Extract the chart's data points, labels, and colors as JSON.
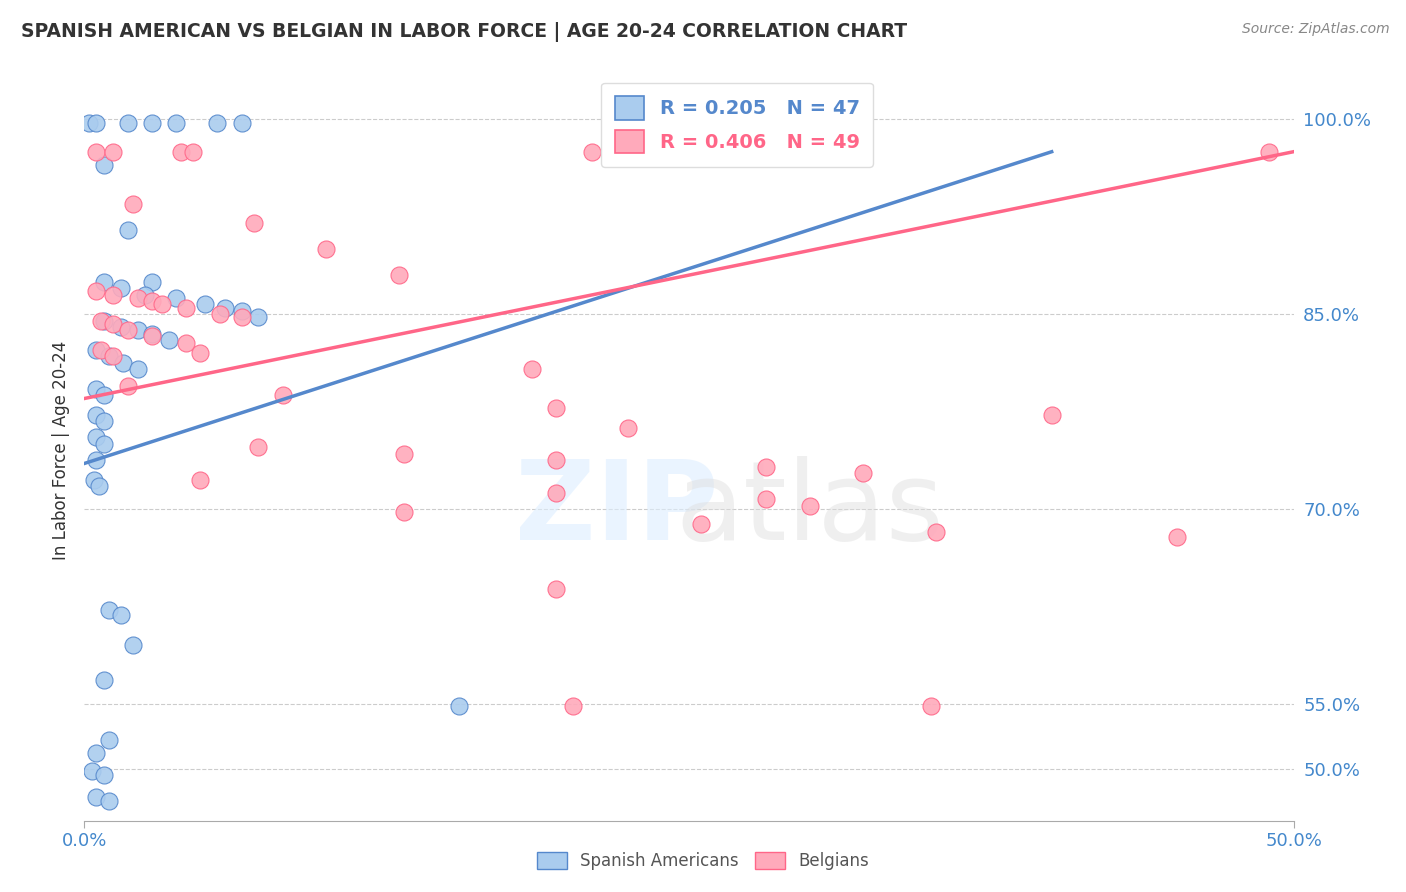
{
  "title": "SPANISH AMERICAN VS BELGIAN IN LABOR FORCE | AGE 20-24 CORRELATION CHART",
  "source_text": "Source: ZipAtlas.com",
  "ylabel": "In Labor Force | Age 20-24",
  "x_min": 0.0,
  "x_max": 0.5,
  "y_min": 0.46,
  "y_max": 1.03,
  "x_tick_labels": [
    "0.0%",
    "50.0%"
  ],
  "x_tick_vals": [
    0.0,
    0.5
  ],
  "y_tick_labels": [
    "50.0%",
    "55.0%",
    "70.0%",
    "85.0%",
    "100.0%"
  ],
  "y_tick_vals": [
    0.5,
    0.55,
    0.7,
    0.85,
    1.0
  ],
  "grid_color": "#cccccc",
  "background_color": "#ffffff",
  "blue_color": "#5588CC",
  "pink_color": "#FF6688",
  "blue_fill": "#aaccee",
  "pink_fill": "#ffaabb",
  "legend_R_blue": "0.205",
  "legend_N_blue": "47",
  "legend_R_pink": "0.406",
  "legend_N_pink": "49",
  "blue_line": [
    [
      0.0,
      0.735
    ],
    [
      0.4,
      0.975
    ]
  ],
  "pink_line": [
    [
      0.0,
      0.785
    ],
    [
      0.5,
      0.975
    ]
  ],
  "blue_points": [
    [
      0.002,
      0.997
    ],
    [
      0.005,
      0.997
    ],
    [
      0.018,
      0.997
    ],
    [
      0.028,
      0.997
    ],
    [
      0.038,
      0.997
    ],
    [
      0.055,
      0.997
    ],
    [
      0.065,
      0.997
    ],
    [
      0.008,
      0.965
    ],
    [
      0.018,
      0.915
    ],
    [
      0.028,
      0.875
    ],
    [
      0.008,
      0.875
    ],
    [
      0.015,
      0.87
    ],
    [
      0.025,
      0.865
    ],
    [
      0.038,
      0.862
    ],
    [
      0.05,
      0.858
    ],
    [
      0.058,
      0.855
    ],
    [
      0.065,
      0.852
    ],
    [
      0.072,
      0.848
    ],
    [
      0.008,
      0.845
    ],
    [
      0.015,
      0.84
    ],
    [
      0.022,
      0.838
    ],
    [
      0.028,
      0.835
    ],
    [
      0.035,
      0.83
    ],
    [
      0.005,
      0.822
    ],
    [
      0.01,
      0.818
    ],
    [
      0.016,
      0.812
    ],
    [
      0.022,
      0.808
    ],
    [
      0.005,
      0.792
    ],
    [
      0.008,
      0.788
    ],
    [
      0.005,
      0.772
    ],
    [
      0.008,
      0.768
    ],
    [
      0.005,
      0.755
    ],
    [
      0.008,
      0.75
    ],
    [
      0.005,
      0.738
    ],
    [
      0.004,
      0.722
    ],
    [
      0.006,
      0.718
    ],
    [
      0.01,
      0.622
    ],
    [
      0.015,
      0.618
    ],
    [
      0.02,
      0.595
    ],
    [
      0.008,
      0.568
    ],
    [
      0.01,
      0.522
    ],
    [
      0.005,
      0.512
    ],
    [
      0.003,
      0.498
    ],
    [
      0.008,
      0.495
    ],
    [
      0.005,
      0.478
    ],
    [
      0.01,
      0.475
    ],
    [
      0.155,
      0.548
    ]
  ],
  "pink_points": [
    [
      0.005,
      0.975
    ],
    [
      0.012,
      0.975
    ],
    [
      0.04,
      0.975
    ],
    [
      0.045,
      0.975
    ],
    [
      0.21,
      0.975
    ],
    [
      0.22,
      0.975
    ],
    [
      0.49,
      0.975
    ],
    [
      0.02,
      0.935
    ],
    [
      0.07,
      0.92
    ],
    [
      0.1,
      0.9
    ],
    [
      0.13,
      0.88
    ],
    [
      0.005,
      0.868
    ],
    [
      0.012,
      0.865
    ],
    [
      0.022,
      0.862
    ],
    [
      0.028,
      0.86
    ],
    [
      0.032,
      0.858
    ],
    [
      0.042,
      0.855
    ],
    [
      0.056,
      0.85
    ],
    [
      0.065,
      0.848
    ],
    [
      0.007,
      0.845
    ],
    [
      0.012,
      0.842
    ],
    [
      0.018,
      0.838
    ],
    [
      0.028,
      0.833
    ],
    [
      0.042,
      0.828
    ],
    [
      0.007,
      0.822
    ],
    [
      0.012,
      0.818
    ],
    [
      0.048,
      0.82
    ],
    [
      0.185,
      0.808
    ],
    [
      0.018,
      0.795
    ],
    [
      0.082,
      0.788
    ],
    [
      0.195,
      0.778
    ],
    [
      0.4,
      0.772
    ],
    [
      0.225,
      0.762
    ],
    [
      0.072,
      0.748
    ],
    [
      0.132,
      0.742
    ],
    [
      0.195,
      0.738
    ],
    [
      0.282,
      0.732
    ],
    [
      0.322,
      0.728
    ],
    [
      0.048,
      0.722
    ],
    [
      0.195,
      0.712
    ],
    [
      0.282,
      0.708
    ],
    [
      0.3,
      0.702
    ],
    [
      0.132,
      0.698
    ],
    [
      0.255,
      0.688
    ],
    [
      0.352,
      0.682
    ],
    [
      0.452,
      0.678
    ],
    [
      0.195,
      0.638
    ],
    [
      0.202,
      0.548
    ],
    [
      0.35,
      0.548
    ]
  ]
}
